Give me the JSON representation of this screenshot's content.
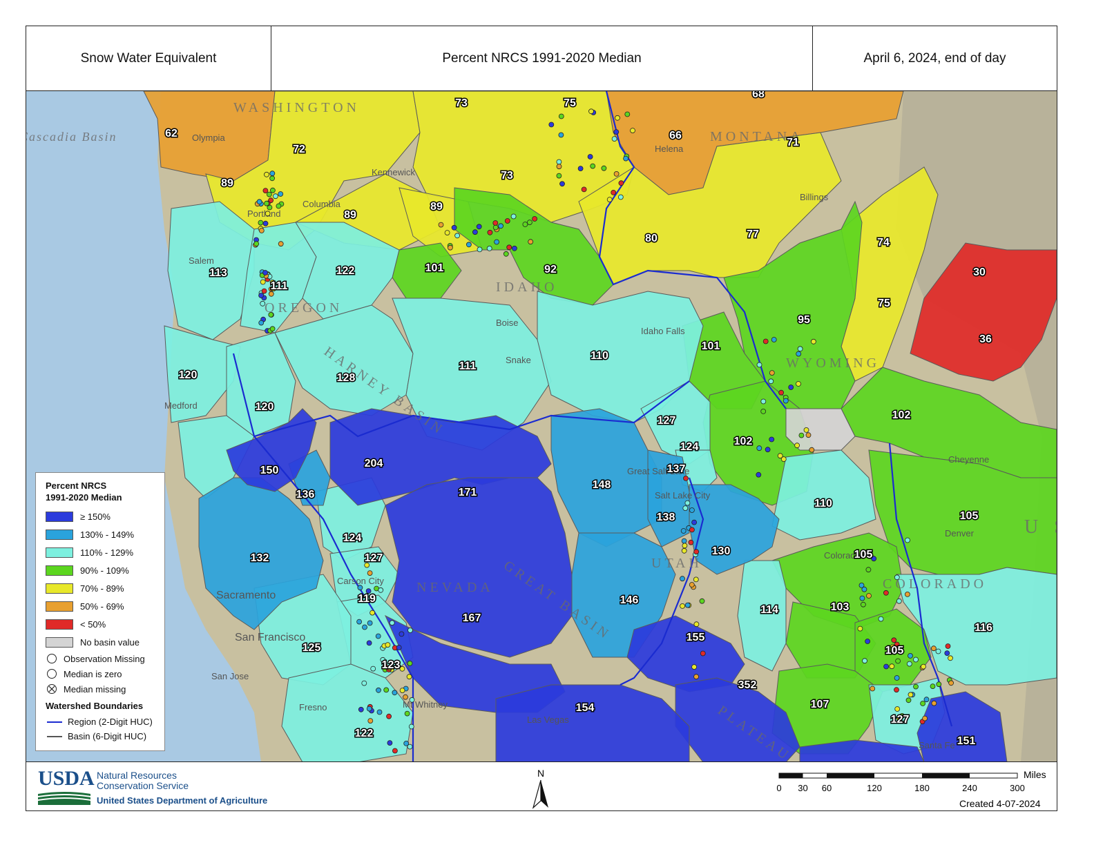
{
  "header": {
    "left": "Snow Water Equivalent",
    "center": "Percent NRCS 1991-2020 Median",
    "right": "April 6, 2024, end of day"
  },
  "colors": {
    "ge150": "#2b3bdc",
    "c130_149": "#2aa3dc",
    "c110_129": "#7df0df",
    "c90_109": "#5cd61f",
    "c70_89": "#e8e82a",
    "c50_69": "#e8a030",
    "lt50": "#e02a28",
    "none": "#d4d4d4",
    "terrain": "#c8c0a0",
    "ocean": "#a9c9e3"
  },
  "legend": {
    "title": "Percent NRCS\n1991-2020 Median",
    "classes": [
      {
        "label": "≥ 150%",
        "color": "#2b3bdc"
      },
      {
        "label": "130% - 149%",
        "color": "#2aa3dc"
      },
      {
        "label": "110% - 129%",
        "color": "#7df0df"
      },
      {
        "label": "90% - 109%",
        "color": "#5cd61f"
      },
      {
        "label": "70% - 89%",
        "color": "#e8e82a"
      },
      {
        "label": "50% - 69%",
        "color": "#e8a030"
      },
      {
        "label": "< 50%",
        "color": "#e02a28"
      },
      {
        "label": "No basin value",
        "color": "#d4d4d4"
      }
    ],
    "symbols": [
      {
        "label": "Observation Missing",
        "icon": "empty-circle-icon"
      },
      {
        "label": "Median is zero",
        "icon": "empty-circle-icon"
      },
      {
        "label": "Median missing",
        "icon": "crossed-circle-icon"
      }
    ],
    "boundaries_title": "Watershed Boundaries",
    "boundaries": [
      {
        "label": "Region (2-Digit HUC)",
        "color": "#1a2bd0"
      },
      {
        "label": "Basin (6-Digit HUC)",
        "color": "#555555"
      }
    ]
  },
  "basin_values": [
    {
      "value": "62",
      "color": "#e8a030"
    },
    {
      "value": "73",
      "color": "#e8e82a"
    },
    {
      "value": "75",
      "color": "#e8e82a"
    },
    {
      "value": "68",
      "color": "#e8a030"
    },
    {
      "value": "72",
      "color": "#e8e82a"
    },
    {
      "value": "66",
      "color": "#e8a030"
    },
    {
      "value": "71",
      "color": "#e8e82a"
    },
    {
      "value": "73",
      "color": "#e8e82a"
    },
    {
      "value": "89",
      "color": "#e8e82a"
    },
    {
      "value": "89",
      "color": "#e8e82a"
    },
    {
      "value": "89",
      "color": "#e8e82a"
    },
    {
      "value": "80",
      "color": "#e8e82a"
    },
    {
      "value": "77",
      "color": "#e8e82a"
    },
    {
      "value": "74",
      "color": "#e8e82a"
    },
    {
      "value": "113",
      "color": "#7df0df"
    },
    {
      "value": "111",
      "color": "#7df0df"
    },
    {
      "value": "122",
      "color": "#7df0df"
    },
    {
      "value": "101",
      "color": "#5cd61f"
    },
    {
      "value": "92",
      "color": "#5cd61f"
    },
    {
      "value": "30",
      "color": "#e02a28"
    },
    {
      "value": "75",
      "color": "#e8e82a"
    },
    {
      "value": "95",
      "color": "#5cd61f"
    },
    {
      "value": "36",
      "color": "#e02a28"
    },
    {
      "value": "120",
      "color": "#7df0df"
    },
    {
      "value": "128",
      "color": "#7df0df"
    },
    {
      "value": "111",
      "color": "#7df0df"
    },
    {
      "value": "110",
      "color": "#7df0df"
    },
    {
      "value": "101",
      "color": "#5cd61f"
    },
    {
      "value": "120",
      "color": "#7df0df"
    },
    {
      "value": "102",
      "color": "#5cd61f"
    },
    {
      "value": "127",
      "color": "#7df0df"
    },
    {
      "value": "102",
      "color": "#5cd61f"
    },
    {
      "value": "124",
      "color": "#7df0df"
    },
    {
      "value": "204",
      "color": "#2b3bdc"
    },
    {
      "value": "150",
      "color": "#2b3bdc"
    },
    {
      "value": "137",
      "color": "#2aa3dc"
    },
    {
      "value": "148",
      "color": "#2aa3dc"
    },
    {
      "value": "136",
      "color": "#2aa3dc"
    },
    {
      "value": "171",
      "color": "#2b3bdc"
    },
    {
      "value": "110",
      "color": "#7df0df"
    },
    {
      "value": "138",
      "color": "#2aa3dc"
    },
    {
      "value": "105",
      "color": "#5cd61f"
    },
    {
      "value": "124",
      "color": "#7df0df"
    },
    {
      "value": "132",
      "color": "#2aa3dc"
    },
    {
      "value": "127",
      "color": "#7df0df"
    },
    {
      "value": "130",
      "color": "#2aa3dc"
    },
    {
      "value": "105",
      "color": "#5cd61f"
    },
    {
      "value": "119",
      "color": "#7df0df"
    },
    {
      "value": "146",
      "color": "#2aa3dc"
    },
    {
      "value": "103",
      "color": "#5cd61f"
    },
    {
      "value": "167",
      "color": "#2b3bdc"
    },
    {
      "value": "114",
      "color": "#7df0df"
    },
    {
      "value": "116",
      "color": "#7df0df"
    },
    {
      "value": "155",
      "color": "#2b3bdc"
    },
    {
      "value": "125",
      "color": "#7df0df"
    },
    {
      "value": "105",
      "color": "#5cd61f"
    },
    {
      "value": "123",
      "color": "#7df0df"
    },
    {
      "value": "352",
      "color": "#2b3bdc"
    },
    {
      "value": "154",
      "color": "#2b3bdc"
    },
    {
      "value": "107",
      "color": "#5cd61f"
    },
    {
      "value": "127",
      "color": "#7df0df"
    },
    {
      "value": "122",
      "color": "#7df0df"
    },
    {
      "value": "151",
      "color": "#2b3bdc"
    }
  ],
  "places": [
    "Olympia",
    "Kennewick",
    "Helena",
    "Portland",
    "Columbia",
    "Billings",
    "Salem",
    "Boise",
    "Snake",
    "Idaho Falls",
    "Medford",
    "Cheyenne",
    "Great Salt Lake",
    "Salt Lake City",
    "Denver",
    "Colorado",
    "Sacramento",
    "Carson City",
    "San Francisco",
    "San Jose",
    "Fresno",
    "Mt Whitney",
    "Las Vegas",
    "Santa Fe"
  ],
  "regions": [
    "WASHINGTON",
    "MONTANA",
    "IDAHO",
    "OREGON",
    "WYOMING",
    "NEVADA",
    "UTAH",
    "COLORADO",
    "GREAT BASIN",
    "HARNEY BASIN",
    "PLATEAU",
    "U S",
    "Cascadia Basin"
  ],
  "footer": {
    "agency_short": "USDA",
    "agency_line1": "Natural Resources",
    "agency_line2": "Conservation Service",
    "department": "United States Department of Agriculture",
    "north": "N",
    "scale_unit": "Miles",
    "scale_ticks": [
      "0",
      "30",
      "60",
      "120",
      "180",
      "240",
      "300"
    ],
    "created": "Created 4-07-2024"
  }
}
